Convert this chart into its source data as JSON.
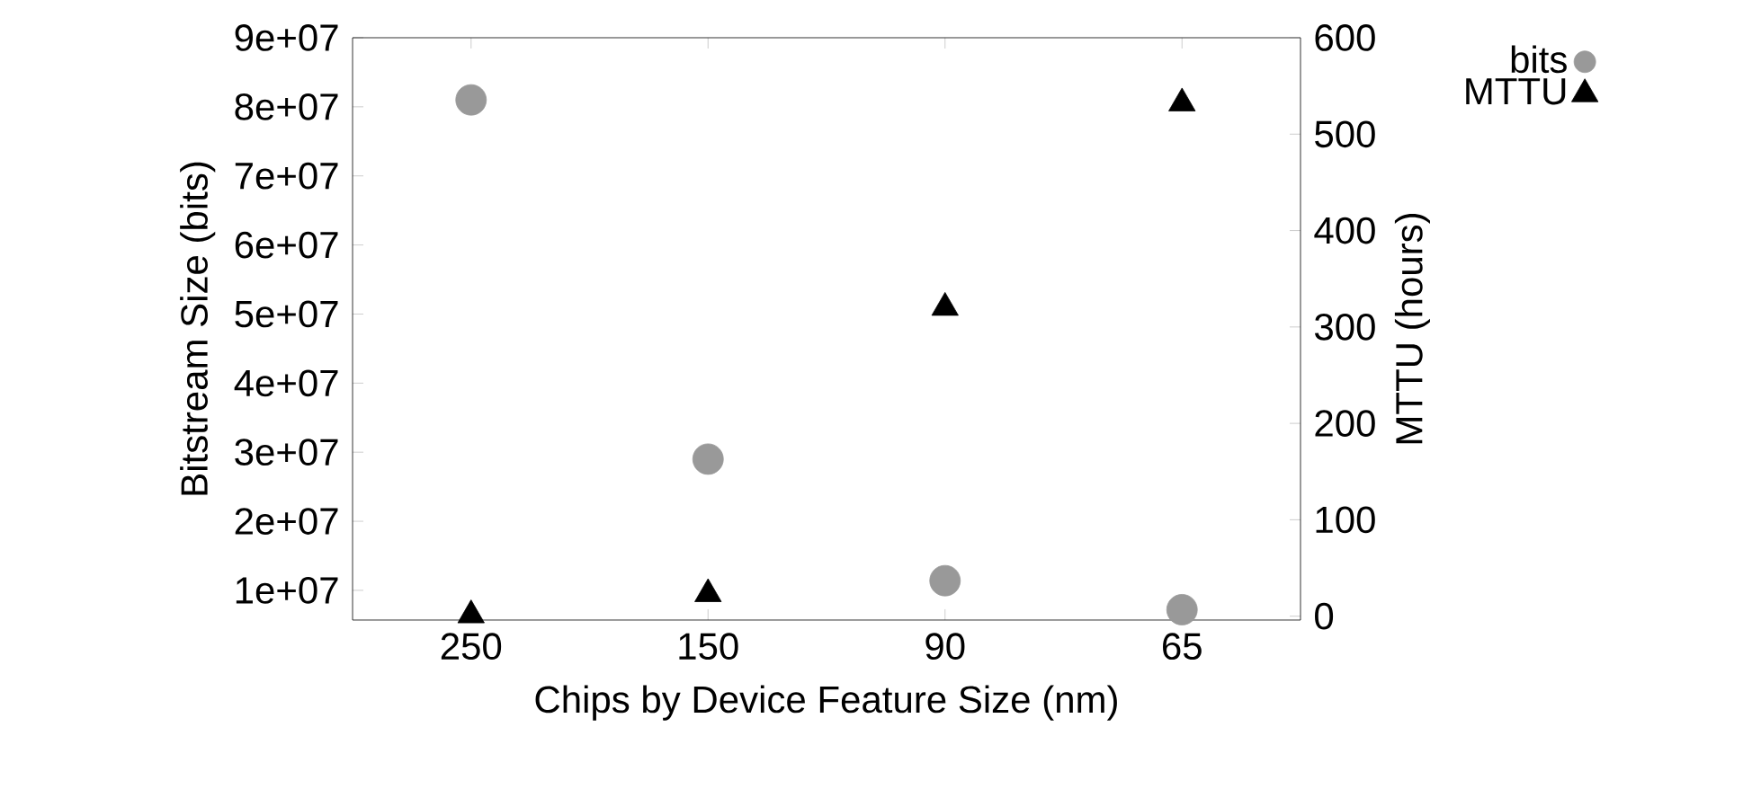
{
  "chart_data": {
    "type": "scatter",
    "xlabel": "Chips by Device Feature Size (nm)",
    "ylabel": "Bitstream Size (bits)",
    "y2label": "MTTU (hours)",
    "categories": [
      "250",
      "150",
      "90",
      "65"
    ],
    "series": [
      {
        "name": "bits",
        "color": "#999999",
        "marker": "circle",
        "values": [
          81000000,
          29000000,
          11400000,
          7200000
        ]
      },
      {
        "name": "MTTU",
        "color": "#000000",
        "marker": "triangle",
        "axis": "y2",
        "values": [
          1,
          23,
          320,
          532
        ]
      }
    ],
    "ylim": [
      5700000,
      90000000
    ],
    "yticks": [
      {
        "value": 10000000,
        "label": "1e+07"
      },
      {
        "value": 20000000,
        "label": "2e+07"
      },
      {
        "value": 30000000,
        "label": "3e+07"
      },
      {
        "value": 40000000,
        "label": "4e+07"
      },
      {
        "value": 50000000,
        "label": "5e+07"
      },
      {
        "value": 60000000,
        "label": "6e+07"
      },
      {
        "value": 70000000,
        "label": "7e+07"
      },
      {
        "value": 80000000,
        "label": "8e+07"
      },
      {
        "value": 90000000,
        "label": "9e+07"
      }
    ],
    "y2lim": [
      -4,
      600
    ],
    "y2ticks": [
      0,
      100,
      200,
      300,
      400,
      500,
      600
    ],
    "legend": "top right",
    "grid": false
  }
}
